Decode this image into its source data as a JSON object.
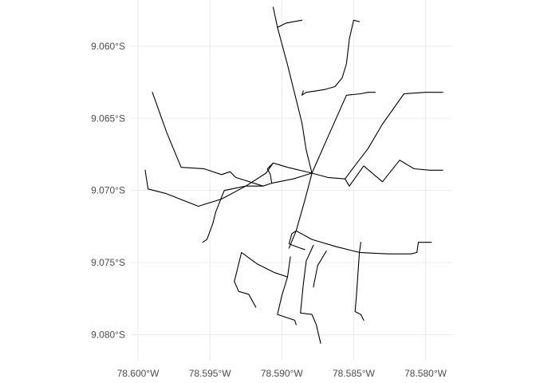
{
  "chart_data": {
    "type": "map",
    "grid": true,
    "background_color": "#ffffff",
    "grid_color": "#ebebeb",
    "line_color": "#000000",
    "xlim": [
      -78.6005,
      -78.5782
    ],
    "ylim": [
      -9.0818,
      -9.0568
    ],
    "x_ticks": [
      {
        "value": -78.6,
        "label": "78.600°W"
      },
      {
        "value": -78.595,
        "label": "78.595°W"
      },
      {
        "value": -78.59,
        "label": "78.590°W"
      },
      {
        "value": -78.585,
        "label": "78.585°W"
      },
      {
        "value": -78.58,
        "label": "78.580°W"
      }
    ],
    "y_ticks": [
      {
        "value": -9.06,
        "label": "9.060°S"
      },
      {
        "value": -9.065,
        "label": "9.065°S"
      },
      {
        "value": -9.07,
        "label": "9.070°S"
      },
      {
        "value": -9.075,
        "label": "9.075°S"
      },
      {
        "value": -9.08,
        "label": "9.080°S"
      }
    ],
    "roads": [
      [
        [
          -78.5906,
          -9.0573
        ],
        [
          -78.5903,
          -9.0587
        ],
        [
          -78.5896,
          -9.0613
        ],
        [
          -78.5891,
          -9.0633
        ],
        [
          -78.5886,
          -9.0653
        ],
        [
          -78.5883,
          -9.0672
        ],
        [
          -78.5879,
          -9.0688
        ]
      ],
      [
        [
          -78.5903,
          -9.0587
        ],
        [
          -78.5897,
          -9.0584
        ],
        [
          -78.5886,
          -9.0582
        ]
      ],
      [
        [
          -78.5879,
          -9.0688
        ],
        [
          -78.5884,
          -9.0707
        ],
        [
          -78.589,
          -9.0728
        ],
        [
          -78.5895,
          -9.074
        ]
      ],
      [
        [
          -78.5879,
          -9.0688
        ],
        [
          -78.5868,
          -9.0663
        ],
        [
          -78.5855,
          -9.0634
        ],
        [
          -78.5845,
          -9.0633
        ],
        [
          -78.584,
          -9.0632
        ],
        [
          -78.5835,
          -9.0632
        ]
      ],
      [
        [
          -78.5879,
          -9.0688
        ],
        [
          -78.5892,
          -9.0692
        ],
        [
          -78.5907,
          -9.0695
        ],
        [
          -78.5913,
          -9.0697
        ],
        [
          -78.5932,
          -9.0691
        ],
        [
          -78.5936,
          -9.0687
        ],
        [
          -78.5942,
          -9.0689
        ],
        [
          -78.5954,
          -9.0685
        ],
        [
          -78.597,
          -9.0684
        ],
        [
          -78.598,
          -9.066
        ],
        [
          -78.599,
          -9.0632
        ]
      ],
      [
        [
          -78.5879,
          -9.0688
        ],
        [
          -78.5896,
          -9.0684
        ],
        [
          -78.5906,
          -9.0681
        ],
        [
          -78.5911,
          -9.0688
        ],
        [
          -78.5925,
          -9.0697
        ],
        [
          -78.5942,
          -9.0706
        ],
        [
          -78.5958,
          -9.0711
        ],
        [
          -78.5981,
          -9.0702
        ],
        [
          -78.5993,
          -9.0699
        ],
        [
          -78.5995,
          -9.0686
        ]
      ],
      [
        [
          -78.5879,
          -9.0688
        ],
        [
          -78.5868,
          -9.0691
        ],
        [
          -78.5856,
          -9.0692
        ],
        [
          -78.585,
          -9.0684
        ],
        [
          -78.584,
          -9.0671
        ],
        [
          -78.583,
          -9.0654
        ],
        [
          -78.5815,
          -9.0633
        ],
        [
          -78.58,
          -9.0632
        ],
        [
          -78.5788,
          -9.0632
        ]
      ],
      [
        [
          -78.5856,
          -9.0692
        ],
        [
          -78.5853,
          -9.0697
        ],
        [
          -78.5843,
          -9.0683
        ],
        [
          -78.583,
          -9.0694
        ],
        [
          -78.5818,
          -9.0679
        ],
        [
          -78.5808,
          -9.0685
        ],
        [
          -78.5797,
          -9.0686
        ],
        [
          -78.5788,
          -9.0686
        ]
      ],
      [
        [
          -78.5885,
          -9.0631
        ],
        [
          -78.5886,
          -9.0634
        ],
        [
          -78.5883,
          -9.0632
        ],
        [
          -78.5876,
          -9.0631
        ],
        [
          -78.587,
          -9.063
        ],
        [
          -78.5863,
          -9.0628
        ],
        [
          -78.5858,
          -9.0622
        ],
        [
          -78.5855,
          -9.0612
        ],
        [
          -78.5853,
          -9.0595
        ],
        [
          -78.585,
          -9.0582
        ],
        [
          -78.5846,
          -9.0583
        ]
      ],
      [
        [
          -78.589,
          -9.0728
        ],
        [
          -78.5879,
          -9.0734
        ],
        [
          -78.5862,
          -9.0739
        ],
        [
          -78.5846,
          -9.0743
        ],
        [
          -78.5826,
          -9.0744
        ],
        [
          -78.581,
          -9.0744
        ],
        [
          -78.5806,
          -9.0743
        ],
        [
          -78.5805,
          -9.0736
        ],
        [
          -78.5796,
          -9.0736
        ]
      ],
      [
        [
          -78.589,
          -9.0728
        ],
        [
          -78.5893,
          -9.073
        ],
        [
          -78.5895,
          -9.0737
        ],
        [
          -78.5887,
          -9.074
        ],
        [
          -78.5884,
          -9.0741
        ]
      ],
      [
        [
          -78.5846,
          -9.0743
        ],
        [
          -78.5845,
          -9.0736
        ]
      ],
      [
        [
          -78.5846,
          -9.0743
        ],
        [
          -78.5848,
          -9.0772
        ],
        [
          -78.5849,
          -9.0784
        ],
        [
          -78.5845,
          -9.0786
        ],
        [
          -78.5843,
          -9.079
        ]
      ],
      [
        [
          -78.5878,
          -9.0738
        ],
        [
          -78.5883,
          -9.0749
        ],
        [
          -78.5885,
          -9.0765
        ],
        [
          -78.5887,
          -9.0785
        ],
        [
          -78.5879,
          -9.0786
        ],
        [
          -78.5876,
          -9.0793
        ],
        [
          -78.5873,
          -9.0806
        ]
      ],
      [
        [
          -78.5869,
          -9.0742
        ],
        [
          -78.5875,
          -9.0752
        ],
        [
          -78.5878,
          -9.0767
        ]
      ],
      [
        [
          -78.5894,
          -9.0746
        ],
        [
          -78.5896,
          -9.076
        ],
        [
          -78.59,
          -9.0773
        ],
        [
          -78.5903,
          -9.0786
        ],
        [
          -78.5891,
          -9.079
        ],
        [
          -78.589,
          -9.0793
        ]
      ],
      [
        [
          -78.5896,
          -9.076
        ],
        [
          -78.5905,
          -9.0757
        ],
        [
          -78.5917,
          -9.0751
        ],
        [
          -78.5928,
          -9.0743
        ],
        [
          -78.5933,
          -9.0763
        ],
        [
          -78.593,
          -9.077
        ],
        [
          -78.5923,
          -9.0772
        ],
        [
          -78.5918,
          -9.0781
        ]
      ],
      [
        [
          -78.5913,
          -9.0697
        ],
        [
          -78.5925,
          -9.0697
        ],
        [
          -78.594,
          -9.07
        ],
        [
          -78.5946,
          -9.0715
        ],
        [
          -78.5948,
          -9.0723
        ],
        [
          -78.5952,
          -9.0734
        ],
        [
          -78.5955,
          -9.0736
        ]
      ],
      [
        [
          -78.5907,
          -9.0695
        ],
        [
          -78.5908,
          -9.0689
        ],
        [
          -78.591,
          -9.0685
        ],
        [
          -78.5906,
          -9.0681
        ]
      ]
    ]
  }
}
